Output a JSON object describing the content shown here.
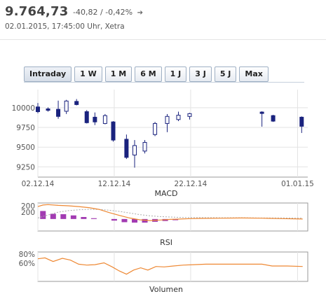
{
  "quote": {
    "price": "9.764,73",
    "change": "-40,82",
    "separator": "/",
    "change_pct": "-0,42%",
    "arrow": "➔",
    "timestamp": "02.01.2015, 17:45:00 Uhr, Xetra"
  },
  "tabs": [
    {
      "label": "Intraday",
      "active": true
    },
    {
      "label": "1 W"
    },
    {
      "label": "1 M"
    },
    {
      "label": "6 M"
    },
    {
      "label": "1 J"
    },
    {
      "label": "3 J"
    },
    {
      "label": "5 J"
    },
    {
      "label": "Max"
    }
  ],
  "colors": {
    "candle_up": "#ffffff",
    "candle_down": "#1a237e",
    "candle_border": "#1a237e",
    "macd_line": "#ee8833",
    "macd_signal": "#aaaaaa",
    "macd_hist": "#a23bb2",
    "rsi_line": "#ee8833",
    "grid": "#e3e3e3",
    "axis": "#999999"
  },
  "chart_data": [
    {
      "type": "candlestick",
      "title": "",
      "y_ticks": [
        10000,
        9750,
        9500,
        9250
      ],
      "y_tick_labels": [
        "10000",
        "9750",
        "9500",
        "9250"
      ],
      "ylim": [
        9120,
        10230
      ],
      "x_tick_labels": [
        "02.12.14",
        "12.12.14",
        "22.12.14",
        "01.01.15"
      ],
      "x_tick_positions": [
        0,
        7.5,
        15.0,
        25.5
      ],
      "gridlines_x": [
        0,
        7.5,
        15.0,
        25.5
      ],
      "candles": [
        {
          "x": 0.0,
          "open": 10010,
          "high": 10060,
          "low": 9930,
          "close": 9950
        },
        {
          "x": 1.0,
          "open": 9985,
          "high": 10005,
          "low": 9950,
          "close": 9975
        },
        {
          "x": 2.0,
          "open": 9980,
          "high": 10090,
          "low": 9860,
          "close": 9890
        },
        {
          "x": 2.8,
          "open": 9955,
          "high": 10100,
          "low": 9920,
          "close": 10085
        },
        {
          "x": 3.8,
          "open": 10080,
          "high": 10110,
          "low": 10030,
          "close": 10040
        },
        {
          "x": 4.8,
          "open": 9950,
          "high": 9970,
          "low": 9800,
          "close": 9810
        },
        {
          "x": 5.6,
          "open": 9880,
          "high": 9940,
          "low": 9780,
          "close": 9820
        },
        {
          "x": 6.6,
          "open": 9800,
          "high": 9920,
          "low": 9790,
          "close": 9900
        },
        {
          "x": 7.4,
          "open": 9820,
          "high": 9830,
          "low": 9570,
          "close": 9590
        },
        {
          "x": 8.7,
          "open": 9600,
          "high": 9660,
          "low": 9350,
          "close": 9370
        },
        {
          "x": 9.5,
          "open": 9400,
          "high": 9590,
          "low": 9240,
          "close": 9520
        },
        {
          "x": 10.5,
          "open": 9450,
          "high": 9590,
          "low": 9420,
          "close": 9560
        },
        {
          "x": 11.5,
          "open": 9660,
          "high": 9820,
          "low": 9640,
          "close": 9800
        },
        {
          "x": 12.7,
          "open": 9800,
          "high": 9920,
          "low": 9690,
          "close": 9890
        },
        {
          "x": 13.8,
          "open": 9850,
          "high": 9950,
          "low": 9830,
          "close": 9905
        },
        {
          "x": 14.9,
          "open": 9890,
          "high": 9935,
          "low": 9850,
          "close": 9925
        },
        {
          "x": 22.0,
          "open": 9945,
          "high": 9955,
          "low": 9760,
          "close": 9930
        },
        {
          "x": 23.1,
          "open": 9900,
          "high": 9910,
          "low": 9820,
          "close": 9830
        },
        {
          "x": 25.9,
          "open": 9880,
          "high": 9890,
          "low": 9680,
          "close": 9765
        }
      ]
    },
    {
      "type": "line+bar",
      "title": "MACD",
      "y_tick_labels": [
        "200",
        "200"
      ],
      "ylim": [
        -60,
        80
      ],
      "x_positions": [
        0,
        7.5,
        15.0,
        25.5
      ],
      "histogram": [
        {
          "x": 0.5,
          "value": 40
        },
        {
          "x": 1.5,
          "value": 26
        },
        {
          "x": 2.5,
          "value": 24
        },
        {
          "x": 3.5,
          "value": 18
        },
        {
          "x": 4.5,
          "value": 10
        },
        {
          "x": 5.5,
          "value": 4
        },
        {
          "x": 7.5,
          "value": -8
        },
        {
          "x": 8.5,
          "value": -16
        },
        {
          "x": 9.5,
          "value": -18
        },
        {
          "x": 10.5,
          "value": -18
        },
        {
          "x": 11.5,
          "value": -14
        },
        {
          "x": 12.5,
          "value": -10
        },
        {
          "x": 13.5,
          "value": -6
        }
      ],
      "series": [
        {
          "name": "MACD",
          "x": [
            0,
            0.5,
            1,
            2,
            3,
            4,
            5,
            6,
            7,
            8,
            9,
            10,
            11,
            12,
            13,
            14,
            15,
            16,
            18,
            20,
            22,
            24,
            26
          ],
          "values": [
            62,
            70,
            72,
            68,
            66,
            62,
            57,
            48,
            32,
            18,
            5,
            -4,
            -8,
            -5,
            -2,
            0,
            2,
            3,
            4,
            5,
            4,
            2,
            0
          ]
        },
        {
          "name": "Signal",
          "x": [
            0,
            1,
            2,
            3,
            4,
            5,
            6,
            7,
            8,
            9,
            10,
            11,
            12,
            13,
            14,
            15,
            16,
            18,
            20,
            22,
            24,
            26
          ],
          "values": [
            5,
            20,
            34,
            42,
            46,
            48,
            48,
            44,
            38,
            30,
            22,
            16,
            12,
            10,
            8,
            7,
            7,
            6,
            6,
            5,
            5,
            4
          ]
        }
      ]
    },
    {
      "type": "line",
      "title": "RSI",
      "y_ticks": [
        80,
        60
      ],
      "y_tick_labels": [
        "80%",
        "60%"
      ],
      "ylim": [
        20,
        85
      ],
      "series": [
        {
          "name": "RSI",
          "x": [
            0,
            0.7,
            1.5,
            2.4,
            3.2,
            4.0,
            4.8,
            5.6,
            6.5,
            7.3,
            8.0,
            8.7,
            9.4,
            10.1,
            10.8,
            11.6,
            12.4,
            13.3,
            14.3,
            15.3,
            16.5,
            18,
            20,
            22,
            23,
            24.5,
            26
          ],
          "values": [
            70,
            72,
            64,
            71,
            67,
            58,
            56,
            57,
            61,
            52,
            43,
            36,
            45,
            50,
            45,
            53,
            52,
            54,
            56,
            57,
            58,
            58,
            58,
            58,
            54,
            54,
            53
          ]
        }
      ]
    },
    {
      "type": "bar",
      "title": "Volumen",
      "values": []
    }
  ]
}
